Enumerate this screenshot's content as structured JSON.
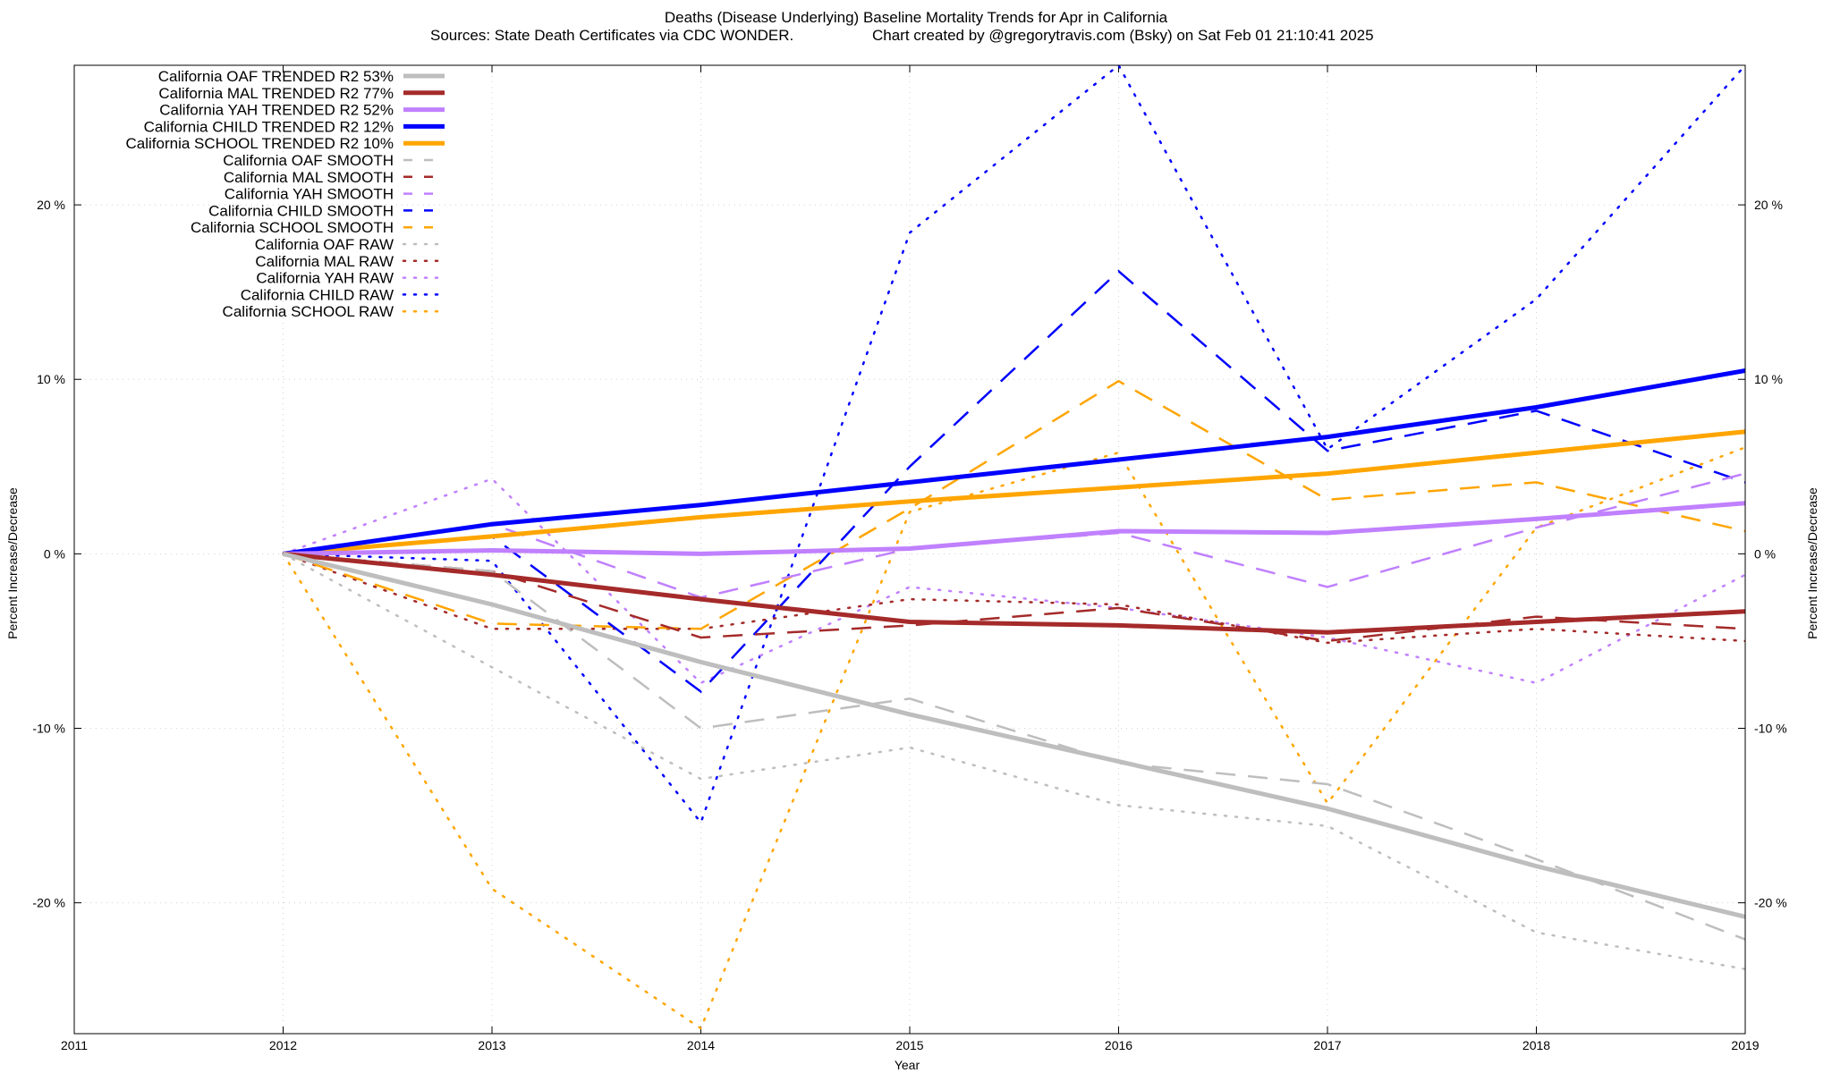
{
  "chart_data": {
    "type": "line",
    "title": "Deaths (Disease Underlying)  Baseline Mortality Trends for Apr in California",
    "subtitle_left": "Sources: State Death Certificates via CDC WONDER.",
    "subtitle_right": "Chart created by @gregorytravis.com (Bsky) on Sat Feb 01 21:10:41 2025",
    "xlabel": "Year",
    "ylabel_left": "Percent Increase/Decrease",
    "ylabel_right": "Percent Increase/Decrease",
    "xlim": [
      2011,
      2019
    ],
    "ylim": [
      -27.5,
      28
    ],
    "grid": true,
    "legend_position": "top-left",
    "x_ticks": [
      2011,
      2012,
      2013,
      2014,
      2015,
      2016,
      2017,
      2018,
      2019
    ],
    "x_tick_labels": [
      "2011",
      "2012",
      "2013",
      "2014",
      "2015",
      "2016",
      "2017",
      "2018",
      "2019"
    ],
    "y_ticks": [
      -20,
      -10,
      0,
      10,
      20
    ],
    "y_tick_labels": [
      "-20 %",
      "-10 %",
      "0 %",
      "10 %",
      "20 %"
    ],
    "series": [
      {
        "name": "California OAF TRENDED R2  53%",
        "style": "solid",
        "color": "#bebebe",
        "x": [
          2012,
          2013,
          2014,
          2015,
          2016,
          2017,
          2018,
          2019
        ],
        "values": [
          0,
          -2.9,
          -6.2,
          -9.2,
          -11.9,
          -14.6,
          -17.9,
          -20.8
        ]
      },
      {
        "name": "California MAL TRENDED R2  77%",
        "style": "solid",
        "color": "#a52a2a",
        "x": [
          2012,
          2013,
          2014,
          2015,
          2016,
          2017,
          2018,
          2019
        ],
        "values": [
          0,
          -1.2,
          -2.6,
          -3.9,
          -4.1,
          -4.5,
          -3.9,
          -3.3
        ]
      },
      {
        "name": "California YAH TRENDED R2  52%",
        "style": "solid",
        "color": "#c080ff",
        "x": [
          2012,
          2013,
          2014,
          2015,
          2016,
          2017,
          2018,
          2019
        ],
        "values": [
          0,
          0.2,
          0,
          0.3,
          1.3,
          1.2,
          2.0,
          2.9
        ]
      },
      {
        "name": "California CHILD TRENDED R2  12%",
        "style": "solid",
        "color": "#0000ff",
        "x": [
          2012,
          2013,
          2014,
          2015,
          2016,
          2017,
          2018,
          2019
        ],
        "values": [
          0,
          1.7,
          2.8,
          4.1,
          5.4,
          6.7,
          8.4,
          10.5
        ]
      },
      {
        "name": "California SCHOOL TRENDED R2  10%",
        "style": "solid",
        "color": "#ffa500",
        "x": [
          2012,
          2013,
          2014,
          2015,
          2016,
          2017,
          2018,
          2019
        ],
        "values": [
          0,
          1.0,
          2.1,
          3.0,
          3.8,
          4.6,
          5.8,
          7.0
        ]
      },
      {
        "name": "California OAF SMOOTH",
        "style": "dashed",
        "color": "#bebebe",
        "x": [
          2012,
          2013,
          2014,
          2015,
          2016,
          2017,
          2018,
          2019
        ],
        "values": [
          0,
          -1.0,
          -10.0,
          -8.3,
          -12.0,
          -13.2,
          -17.5,
          -22.1
        ]
      },
      {
        "name": "California MAL SMOOTH",
        "style": "dashed",
        "color": "#a52a2a",
        "x": [
          2012,
          2013,
          2014,
          2015,
          2016,
          2017,
          2018,
          2019
        ],
        "values": [
          0,
          -1.0,
          -4.8,
          -4.1,
          -3.1,
          -5.0,
          -3.6,
          -4.3
        ]
      },
      {
        "name": "California YAH SMOOTH",
        "style": "dashed",
        "color": "#c080ff",
        "x": [
          2012,
          2013,
          2014,
          2015,
          2016,
          2017,
          2018,
          2019
        ],
        "values": [
          0,
          1.7,
          -2.5,
          0.3,
          1.2,
          -1.9,
          1.5,
          4.6
        ]
      },
      {
        "name": "California CHILD SMOOTH",
        "style": "dashed",
        "color": "#0000ff",
        "x": [
          2012,
          2013,
          2014,
          2015,
          2016,
          2017,
          2018,
          2019
        ],
        "values": [
          0,
          1.0,
          -7.9,
          5.0,
          16.2,
          5.9,
          8.2,
          4.1
        ]
      },
      {
        "name": "California SCHOOL SMOOTH",
        "style": "dashed",
        "color": "#ffa500",
        "x": [
          2012,
          2013,
          2014,
          2015,
          2016,
          2017,
          2018,
          2019
        ],
        "values": [
          0,
          -4.0,
          -4.3,
          2.6,
          9.9,
          3.1,
          4.1,
          1.3
        ]
      },
      {
        "name": "California OAF RAW",
        "style": "dotted",
        "color": "#bebebe",
        "x": [
          2012,
          2013,
          2014,
          2015,
          2016,
          2017,
          2018,
          2019
        ],
        "values": [
          0,
          -6.5,
          -12.9,
          -11.1,
          -14.4,
          -15.6,
          -21.7,
          -23.8
        ]
      },
      {
        "name": "California MAL RAW",
        "style": "dotted",
        "color": "#a52a2a",
        "x": [
          2012,
          2013,
          2014,
          2015,
          2016,
          2017,
          2018,
          2019
        ],
        "values": [
          0,
          -4.3,
          -4.3,
          -2.6,
          -2.9,
          -5.1,
          -4.3,
          -5.0
        ]
      },
      {
        "name": "California YAH RAW",
        "style": "dotted",
        "color": "#c080ff",
        "x": [
          2012,
          2013,
          2014,
          2015,
          2016,
          2017,
          2018,
          2019
        ],
        "values": [
          0,
          4.3,
          -7.4,
          -1.9,
          -3.1,
          -4.8,
          -7.4,
          -1.2
        ]
      },
      {
        "name": "California CHILD RAW",
        "style": "dotted",
        "color": "#0000ff",
        "x": [
          2012,
          2013,
          2014,
          2015,
          2016,
          2017,
          2018,
          2019
        ],
        "values": [
          0,
          -0.4,
          -15.4,
          18.4,
          28.0,
          6.0,
          14.6,
          28.0
        ]
      },
      {
        "name": "California SCHOOL RAW",
        "style": "dotted",
        "color": "#ffa500",
        "x": [
          2012,
          2013,
          2014,
          2015,
          2016,
          2017,
          2018,
          2019
        ],
        "values": [
          0,
          -19.2,
          -27.2,
          2.4,
          5.8,
          -14.3,
          1.5,
          6.1
        ]
      }
    ]
  }
}
